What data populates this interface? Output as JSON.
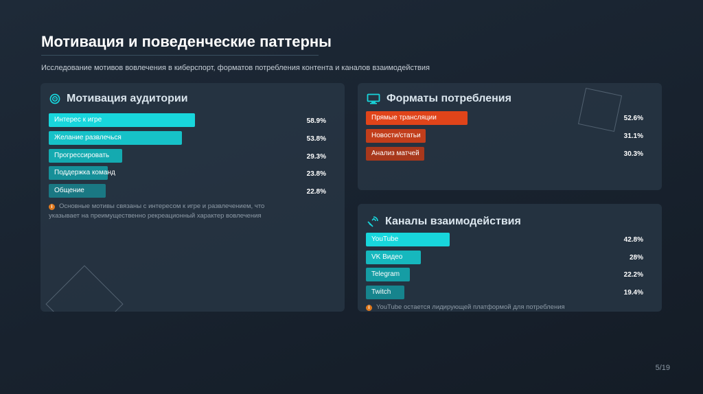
{
  "slide": {
    "title": "Мотивация и поведенческие паттерны",
    "subtitle": "Исследование мотивов вовлечения в киберспорт, форматов потребления контента и каналов взаимодействия",
    "page": "5/19"
  },
  "colors": {
    "cyan": "#18d6dc",
    "teal": "#1a9fa6",
    "orange_red": "#e0441a",
    "dark_orange": "#a8381c"
  },
  "motivation": {
    "title": "Мотивация аудитории",
    "icon": "target-icon",
    "items": [
      {
        "label": "Интерес к игре",
        "value": 58.9,
        "display": "58.9%"
      },
      {
        "label": "Желание развлечься",
        "value": 53.8,
        "display": "53.8%"
      },
      {
        "label": "Прогрессировать",
        "value": 29.3,
        "display": "29.3%"
      },
      {
        "label": "Поддержка команд",
        "value": 23.8,
        "display": "23.8%"
      },
      {
        "label": "Общение",
        "value": 22.8,
        "display": "22.8%"
      }
    ],
    "note": "Основные мотивы связаны с интересом к игре и развлечением, что указывает на преимущественно рекреационный характер вовлечения"
  },
  "formats": {
    "title": "Форматы потребления",
    "icon": "monitor-icon",
    "items": [
      {
        "label": "Прямые трансляции",
        "value": 52.6,
        "display": "52.6%"
      },
      {
        "label": "Новости/статьи",
        "value": 31.1,
        "display": "31.1%"
      },
      {
        "label": "Анализ матчей",
        "value": 30.3,
        "display": "30.3%"
      }
    ]
  },
  "channels": {
    "title": "Каналы взаимодействия",
    "icon": "satellite-icon",
    "items": [
      {
        "label": "YouTube",
        "value": 42.8,
        "display": "42.8%"
      },
      {
        "label": "VK Видео",
        "value": 28,
        "display": "28%"
      },
      {
        "label": "Telegram",
        "value": 22.2,
        "display": "22.2%"
      },
      {
        "label": "Twitch",
        "value": 19.4,
        "display": "19.4%"
      }
    ],
    "note": "YouTube остается лидирующей платформой для потребления"
  }
}
